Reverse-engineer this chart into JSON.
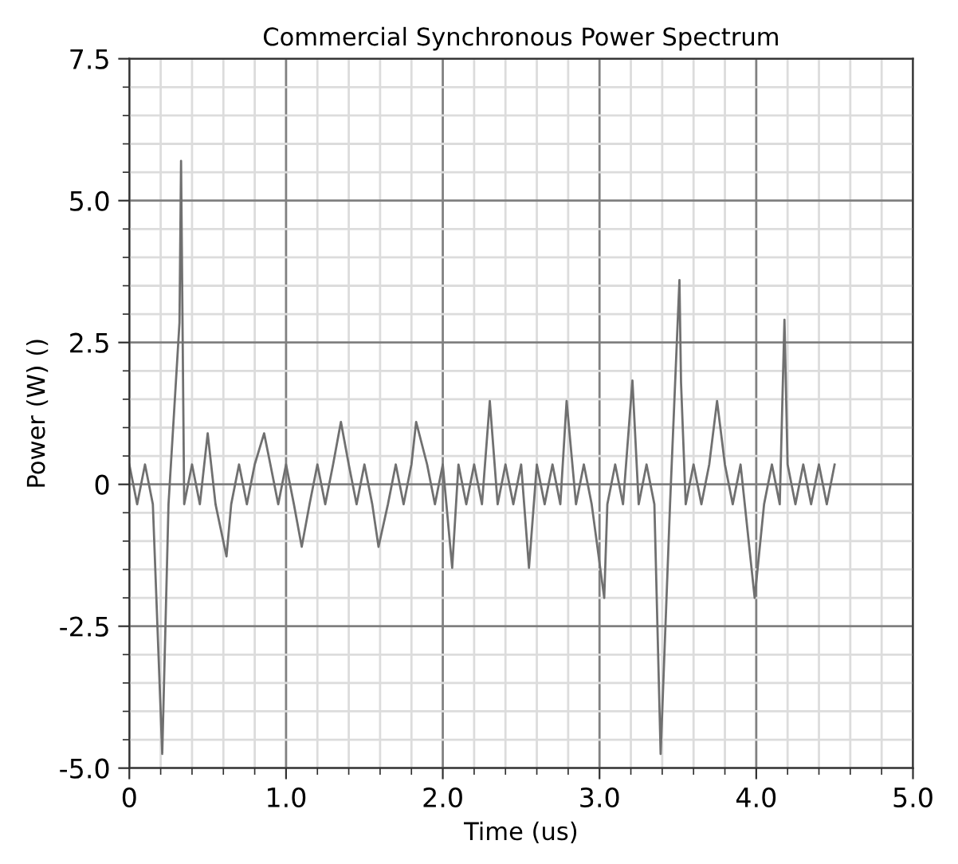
{
  "chart_data": {
    "type": "line",
    "title": "Commercial Synchronous Power Spectrum",
    "xlabel": "Time (us)",
    "ylabel": "Power (W) ()",
    "x": [
      0,
      0.05,
      0.1,
      0.15,
      0.21,
      0.25,
      0.32,
      0.33,
      0.35,
      0.4,
      0.45,
      0.5,
      0.55,
      0.62,
      0.65,
      0.7,
      0.75,
      0.8,
      0.86,
      0.9,
      0.95,
      1.0,
      1.05,
      1.1,
      1.15,
      1.2,
      1.25,
      1.3,
      1.35,
      1.4,
      1.45,
      1.5,
      1.55,
      1.59,
      1.65,
      1.7,
      1.75,
      1.8,
      1.83,
      1.9,
      1.95,
      2.0,
      2.06,
      2.1,
      2.15,
      2.2,
      2.25,
      2.3,
      2.35,
      2.4,
      2.45,
      2.5,
      2.55,
      2.6,
      2.65,
      2.7,
      2.75,
      2.79,
      2.85,
      2.9,
      2.95,
      3.03,
      3.05,
      3.1,
      3.15,
      3.21,
      3.25,
      3.3,
      3.35,
      3.39,
      3.45,
      3.51,
      3.52,
      3.55,
      3.6,
      3.65,
      3.7,
      3.75,
      3.8,
      3.85,
      3.9,
      3.99,
      4.05,
      4.1,
      4.15,
      4.18,
      4.2,
      4.25,
      4.3,
      4.35,
      4.4,
      4.45,
      4.5
    ],
    "series": [
      {
        "color": "#707070",
        "values": [
          0.35,
          -0.35,
          0.35,
          -0.35,
          -4.75,
          -0.35,
          2.85,
          5.7,
          -0.35,
          0.35,
          -0.35,
          0.9,
          -0.35,
          -1.27,
          -0.35,
          0.35,
          -0.35,
          0.35,
          0.9,
          0.35,
          -0.35,
          0.35,
          -0.35,
          -1.1,
          -0.35,
          0.35,
          -0.35,
          0.35,
          1.1,
          0.35,
          -0.35,
          0.35,
          -0.35,
          -1.1,
          -0.35,
          0.35,
          -0.35,
          0.35,
          1.1,
          0.35,
          -0.35,
          0.35,
          -1.47,
          0.35,
          -0.35,
          0.35,
          -0.35,
          1.47,
          -0.35,
          0.35,
          -0.35,
          0.35,
          -1.47,
          0.35,
          -0.35,
          0.35,
          -0.35,
          1.47,
          -0.35,
          0.35,
          -0.35,
          -2.0,
          -0.35,
          0.35,
          -0.35,
          1.83,
          -0.35,
          0.35,
          -0.35,
          -4.75,
          -0.35,
          3.6,
          1.8,
          -0.35,
          0.35,
          -0.35,
          0.35,
          1.47,
          0.35,
          -0.35,
          0.35,
          -2.0,
          -0.35,
          0.35,
          -0.35,
          2.9,
          0.35,
          -0.35,
          0.35,
          -0.35,
          0.35,
          -0.35,
          0.35
        ]
      }
    ],
    "xlim": [
      0,
      5
    ],
    "ylim": [
      -5,
      7.5
    ],
    "xticks": [
      0,
      {
        "value": 0.2,
        "label": null
      },
      {
        "value": 0.4,
        "label": null
      },
      {
        "value": 0.6,
        "label": null
      },
      {
        "value": 0.8,
        "label": null
      },
      {
        "value": 1,
        "label": "1.0"
      },
      {
        "value": 1.2,
        "label": null
      },
      {
        "value": 1.4,
        "label": null
      },
      {
        "value": 1.6,
        "label": null
      },
      {
        "value": 1.8,
        "label": null
      },
      {
        "value": 2,
        "label": "2.0"
      },
      {
        "value": 2.2,
        "label": null
      },
      {
        "value": 2.4,
        "label": null
      },
      {
        "value": 2.6,
        "label": null
      },
      {
        "value": 2.8,
        "label": null
      },
      {
        "value": 3,
        "label": "3.0"
      },
      {
        "value": 3.2,
        "label": null
      },
      {
        "value": 3.4,
        "label": null
      },
      {
        "value": 3.6,
        "label": null
      },
      {
        "value": 3.8,
        "label": null
      },
      {
        "value": 4,
        "label": "4.0"
      },
      {
        "value": 4.2,
        "label": null
      },
      {
        "value": 4.4,
        "label": null
      },
      {
        "value": 4.6,
        "label": null
      },
      {
        "value": 4.8,
        "label": null
      },
      {
        "value": 5,
        "label": "5.0"
      }
    ],
    "yticks": [
      {
        "value": -5,
        "label": "-5.0"
      },
      {
        "value": -4.5,
        "label": null
      },
      {
        "value": -4,
        "label": null
      },
      {
        "value": -3.5,
        "label": null
      },
      {
        "value": -3,
        "label": null
      },
      {
        "value": -2.5,
        "label": "-2.5"
      },
      {
        "value": -2,
        "label": null
      },
      {
        "value": -1.5,
        "label": null
      },
      {
        "value": -1,
        "label": null
      },
      {
        "value": -0.5,
        "label": null
      },
      0,
      {
        "value": 0.5,
        "label": null
      },
      {
        "value": 1,
        "label": null
      },
      {
        "value": 1.5,
        "label": null
      },
      {
        "value": 2,
        "label": null
      },
      {
        "value": 2.5,
        "label": "2.5"
      },
      {
        "value": 3,
        "label": null
      },
      {
        "value": 3.5,
        "label": null
      },
      {
        "value": 4,
        "label": null
      },
      {
        "value": 4.5,
        "label": null
      },
      {
        "value": 5,
        "label": "5.0"
      },
      {
        "value": 5.5,
        "label": null
      },
      {
        "value": 6,
        "label": null
      },
      {
        "value": 6.5,
        "label": null
      },
      {
        "value": 7,
        "label": null
      },
      {
        "value": 7.5,
        "label": "7.5"
      }
    ],
    "grid": true,
    "marker": "none",
    "line_style": "solid"
  }
}
